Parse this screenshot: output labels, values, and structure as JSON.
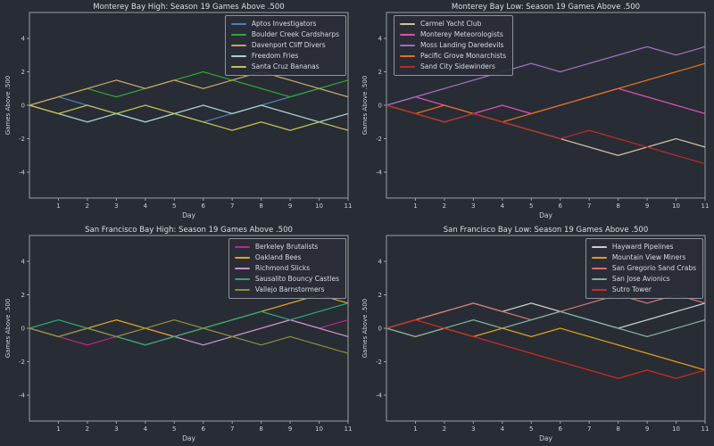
{
  "figure": {
    "background": "#282c34",
    "text_color": "#d6d9de",
    "spine_color": "#9aa0a8"
  },
  "chart_data": [
    {
      "type": "line",
      "title": "Monterey Bay High: Season 19 Games Above .500",
      "xlabel": "Day",
      "ylabel": "Games Above .500",
      "x": [
        0,
        1,
        2,
        3,
        4,
        5,
        6,
        7,
        8,
        9,
        10,
        11
      ],
      "xticks": [
        1,
        2,
        3,
        4,
        5,
        6,
        7,
        8,
        9,
        10,
        11
      ],
      "yticks": [
        -4,
        -2,
        0,
        2,
        4
      ],
      "ylim": [
        -5.5,
        5.5
      ],
      "grid": false,
      "legend_pos": "upper-right",
      "series": [
        {
          "name": "Aptos Investigators",
          "color": "#4d7fb5",
          "values": [
            0,
            0.5,
            0,
            -0.5,
            -1,
            -0.5,
            -1,
            -0.5,
            0,
            0.5,
            1,
            0.5
          ]
        },
        {
          "name": "Boulder Creek Cardsharps",
          "color": "#2fa437",
          "values": [
            0,
            0.5,
            1,
            0.5,
            1,
            1.5,
            2,
            1.5,
            1,
            0.5,
            1,
            1.5
          ]
        },
        {
          "name": "Davenport Cliff Divers",
          "color": "#c9a267",
          "values": [
            0,
            0.5,
            1,
            1.5,
            1,
            1.5,
            1,
            1.5,
            2,
            1.5,
            1,
            0.5
          ]
        },
        {
          "name": "Freedom Fries",
          "color": "#a5d5cf",
          "values": [
            0,
            -0.5,
            -1,
            -0.5,
            -1,
            -0.5,
            0,
            -0.5,
            0,
            -0.5,
            -1,
            -0.5
          ]
        },
        {
          "name": "Santa Cruz Bananas",
          "color": "#c4c150",
          "values": [
            0,
            -0.5,
            0,
            -0.5,
            0,
            -0.5,
            -1,
            -1.5,
            -1,
            -1.5,
            -1,
            -1.5
          ]
        }
      ]
    },
    {
      "type": "line",
      "title": "Monterey Bay Low: Season 19 Games Above .500",
      "xlabel": "Day",
      "ylabel": "Games Above .500",
      "x": [
        0,
        1,
        2,
        3,
        4,
        5,
        6,
        7,
        8,
        9,
        10,
        11
      ],
      "xticks": [
        1,
        2,
        3,
        4,
        5,
        6,
        7,
        8,
        9,
        10,
        11
      ],
      "yticks": [
        -4,
        -2,
        0,
        2,
        4
      ],
      "ylim": [
        -5.5,
        5.5
      ],
      "grid": false,
      "legend_pos": "upper-left",
      "series": [
        {
          "name": "Carmel Yacht Club",
          "color": "#cdc0a9",
          "values": [
            0,
            -0.5,
            -1,
            -0.5,
            -1,
            -1.5,
            -2,
            -2.5,
            -3,
            -2.5,
            -2,
            -2.5
          ]
        },
        {
          "name": "Monterey Meteorologists",
          "color": "#dd4fb4",
          "values": [
            0,
            0.5,
            0,
            -0.5,
            0,
            -0.5,
            0,
            0.5,
            1,
            0.5,
            0,
            -0.5
          ]
        },
        {
          "name": "Moss Landing Daredevils",
          "color": "#9c6fc4",
          "values": [
            0,
            0.5,
            1,
            1.5,
            2,
            2.5,
            2,
            2.5,
            3,
            3.5,
            3,
            3.5
          ]
        },
        {
          "name": "Pacific Grove Monarchists",
          "color": "#e0701f",
          "values": [
            0,
            -0.5,
            0,
            -0.5,
            -1,
            -0.5,
            0,
            0.5,
            1,
            1.5,
            2,
            2.5
          ]
        },
        {
          "name": "Sand City Sidewinders",
          "color": "#bb2a25",
          "values": [
            0,
            -0.5,
            -1,
            -0.5,
            -1,
            -1.5,
            -2,
            -1.5,
            -2,
            -2.5,
            -3,
            -3.5
          ]
        }
      ]
    },
    {
      "type": "line",
      "title": "San Francisco Bay High: Season 19 Games Above .500",
      "xlabel": "Day",
      "ylabel": "Games Above .500",
      "x": [
        0,
        1,
        2,
        3,
        4,
        5,
        6,
        7,
        8,
        9,
        10,
        11
      ],
      "xticks": [
        1,
        2,
        3,
        4,
        5,
        6,
        7,
        8,
        9,
        10,
        11
      ],
      "yticks": [
        -4,
        -2,
        0,
        2,
        4
      ],
      "ylim": [
        -5.5,
        5.5
      ],
      "grid": false,
      "legend_pos": "upper-right",
      "series": [
        {
          "name": "Berkeley Brutalists",
          "color": "#c02488",
          "values": [
            0,
            -0.5,
            -1,
            -0.5,
            0,
            -0.5,
            0,
            -0.5,
            0,
            0.5,
            0,
            0.5
          ]
        },
        {
          "name": "Oakland Bees",
          "color": "#e2a422",
          "values": [
            0,
            -0.5,
            0,
            0.5,
            0,
            -0.5,
            0,
            0.5,
            1,
            1.5,
            2,
            1.5
          ]
        },
        {
          "name": "Richmond Slicks",
          "color": "#c693c9",
          "values": [
            0,
            -0.5,
            0,
            -0.5,
            -1,
            -0.5,
            -1,
            -0.5,
            0,
            0.5,
            0,
            -0.5
          ]
        },
        {
          "name": "Sausalito Bouncy Castles",
          "color": "#2aa874",
          "values": [
            0,
            0.5,
            0,
            -0.5,
            -1,
            -0.5,
            0,
            0.5,
            1,
            0.5,
            1,
            1.5
          ]
        },
        {
          "name": "Vallejo Barnstormers",
          "color": "#878d3a",
          "values": [
            0,
            -0.5,
            0,
            -0.5,
            0,
            0.5,
            0,
            -0.5,
            -1,
            -0.5,
            -1,
            -1.5
          ]
        }
      ]
    },
    {
      "type": "line",
      "title": "San Francisco Bay Low: Season 19 Games Above .500",
      "xlabel": "Day",
      "ylabel": "Games Above .500",
      "x": [
        0,
        1,
        2,
        3,
        4,
        5,
        6,
        7,
        8,
        9,
        10,
        11
      ],
      "xticks": [
        1,
        2,
        3,
        4,
        5,
        6,
        7,
        8,
        9,
        10,
        11
      ],
      "yticks": [
        -4,
        -2,
        0,
        2,
        4
      ],
      "ylim": [
        -5.5,
        5.5
      ],
      "grid": false,
      "legend_pos": "upper-right",
      "series": [
        {
          "name": "Hayward Pipelines",
          "color": "#c9cdd1",
          "values": [
            0,
            0.5,
            1,
            1.5,
            1,
            1.5,
            1,
            0.5,
            0,
            0.5,
            1,
            1.5
          ]
        },
        {
          "name": "Mountain View Miners",
          "color": "#dda019",
          "values": [
            0,
            -0.5,
            0,
            -0.5,
            0,
            -0.5,
            0,
            -0.5,
            -1,
            -1.5,
            -2,
            -2.5
          ]
        },
        {
          "name": "San Gregorio Sand Crabs",
          "color": "#d0736a",
          "values": [
            0,
            0.5,
            1,
            1.5,
            1,
            0.5,
            1,
            1.5,
            2,
            1.5,
            2,
            1.5
          ]
        },
        {
          "name": "San Jose Avionics",
          "color": "#7fae9e",
          "values": [
            0,
            -0.5,
            0,
            0.5,
            0,
            0.5,
            1,
            0.5,
            0,
            -0.5,
            0,
            0.5
          ]
        },
        {
          "name": "Sutro Tower",
          "color": "#cf2a21",
          "values": [
            0,
            0.5,
            0,
            -0.5,
            -1,
            -1.5,
            -2,
            -2.5,
            -3,
            -2.5,
            -3,
            -2.5
          ]
        }
      ]
    }
  ]
}
